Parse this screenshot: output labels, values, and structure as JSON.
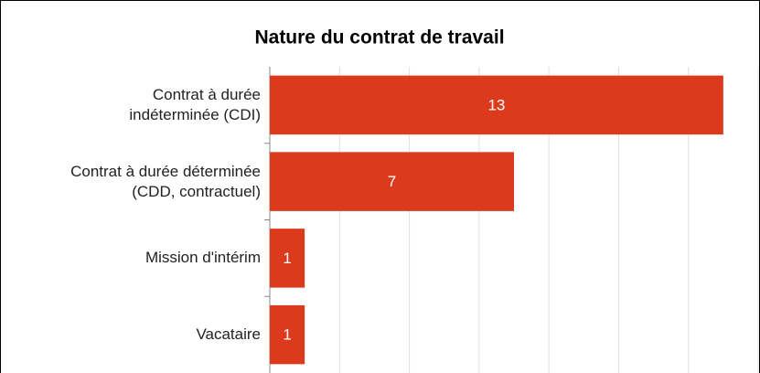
{
  "chart_data": {
    "type": "bar",
    "orientation": "horizontal",
    "title": "Nature du contrat de travail",
    "categories": [
      "Contrat à durée\nindéterminée (CDI)",
      "Contrat à durée déterminée\n(CDD, contractuel)",
      "Mission d'intérim",
      "Vacataire"
    ],
    "values": [
      13,
      7,
      1,
      1
    ],
    "color": "#dc3a1d",
    "xlim": [
      0,
      14
    ],
    "xticks": [
      0,
      2,
      4,
      6,
      8,
      10,
      12,
      14
    ],
    "grid": true
  }
}
